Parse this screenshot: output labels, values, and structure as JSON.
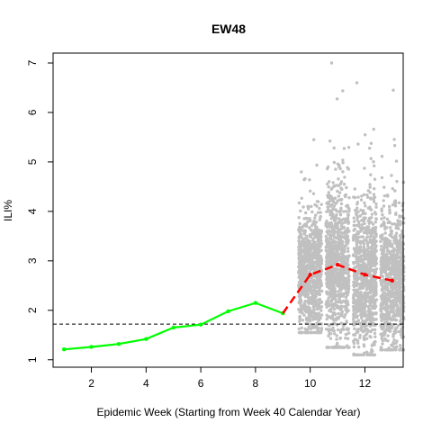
{
  "chart_data": {
    "type": "line",
    "title": "EW48",
    "xlabel": "Epidemic Week (Starting from Week 40 Calendar Year)",
    "ylabel": "ILI%",
    "xlim": [
      0.6,
      13.4
    ],
    "ylim": [
      0.85,
      7.2
    ],
    "xticks": [
      2,
      4,
      6,
      8,
      10,
      12
    ],
    "yticks": [
      1,
      2,
      3,
      4,
      5,
      6,
      7
    ],
    "grid": false,
    "baseline": 1.72,
    "series": [
      {
        "style": "observed",
        "color": "#00ff00",
        "x": [
          1,
          2,
          3,
          4,
          5,
          6,
          7,
          8,
          9
        ],
        "y": [
          1.21,
          1.26,
          1.32,
          1.42,
          1.65,
          1.71,
          1.98,
          2.15,
          1.94
        ]
      },
      {
        "style": "forecast-median",
        "color": "#ff0000",
        "x": [
          9,
          10,
          11,
          12,
          13
        ],
        "y": [
          1.94,
          2.72,
          2.92,
          2.72,
          2.6
        ]
      }
    ],
    "scatter": {
      "color": "#c0c0c0",
      "groups": [
        {
          "x": 10,
          "center": 2.72,
          "min": 1.55,
          "max": 5.45,
          "q1": 2.35,
          "q3": 3.15
        },
        {
          "x": 11,
          "center": 2.92,
          "min": 1.25,
          "max": 7.0,
          "q1": 2.45,
          "q3": 3.45
        },
        {
          "x": 12,
          "center": 2.72,
          "min": 1.1,
          "max": 6.6,
          "q1": 2.25,
          "q3": 3.25
        },
        {
          "x": 13,
          "center": 2.6,
          "min": 1.2,
          "max": 6.45,
          "q1": 2.15,
          "q3": 3.05
        }
      ]
    }
  }
}
